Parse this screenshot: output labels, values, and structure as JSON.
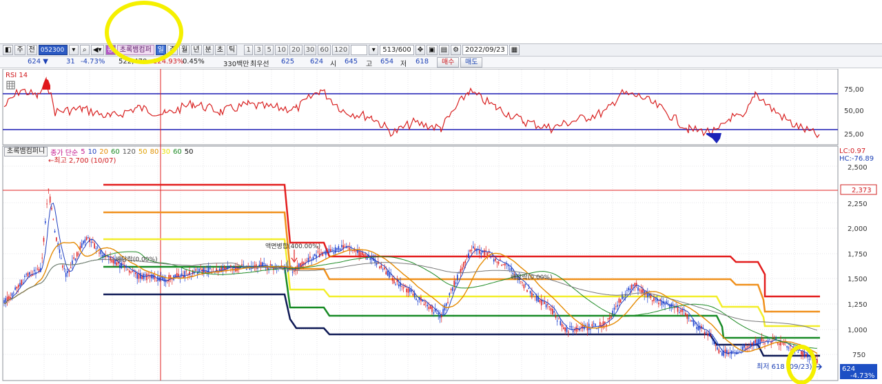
{
  "toolbar": {
    "side_label_1": "주",
    "side_label_2": "전",
    "code": "052300",
    "name_badge": "종",
    "stock_name": "초록뱀컴퍼",
    "periods": [
      "일",
      "주",
      "월",
      "년",
      "분",
      "초",
      "틱"
    ],
    "numbers": [
      "1",
      "3",
      "5",
      "10",
      "20",
      "30",
      "60",
      "120"
    ],
    "count": "513/600",
    "date": "2022/09/23"
  },
  "quote": {
    "price": "624 ▼",
    "change": "31",
    "change_pct": "-4.73%",
    "volume": "522,470",
    "volume_pct": "124.93%",
    "turnover_pct": "0.45%",
    "amount": "330백만",
    "best_label": "최우선",
    "best_ask": "625",
    "best_bid": "624",
    "open_label": "시",
    "open": "645",
    "high_label": "고",
    "high": "654",
    "low_label": "저",
    "low": "618",
    "buy_label": "매수",
    "sell_label": "매도"
  },
  "rsi": {
    "title": "RSI 14",
    "ticks": [
      "75,00",
      "50,00",
      "25,00"
    ]
  },
  "price_chart": {
    "legend_name": "초록뱀컴퍼니",
    "legend_ma_label": "종가 단순",
    "legend_ma": [
      "5",
      "10",
      "20",
      "60",
      "120"
    ],
    "legend_env": [
      "50",
      "80",
      "30",
      "60",
      "50"
    ],
    "legend_ma_colors": [
      "#c3148b",
      "#1f3fbf",
      "#e58a00",
      "#1c8a23",
      "#555555"
    ],
    "legend_env_colors": [
      "#e0a000",
      "#e09000",
      "#e8e000",
      "#1c8a23",
      "#111111"
    ],
    "high_note": "←최고 2,700 (10/07)",
    "low_note": "최저 618 (09/23)",
    "lc": "LC:0.97",
    "hc": "HC:-76.89",
    "price_ticks": [
      "2,500",
      "2,250",
      "2,000",
      "1,750",
      "1,500",
      "1,250",
      "1,000",
      "750"
    ],
    "current_line_label": "2,373",
    "current_price": "624",
    "current_change": "-4.73%",
    "annotations": [
      "배당락(0.00%)",
      "액면병합(400.00%)",
      "배당락(0.00%)"
    ]
  }
}
